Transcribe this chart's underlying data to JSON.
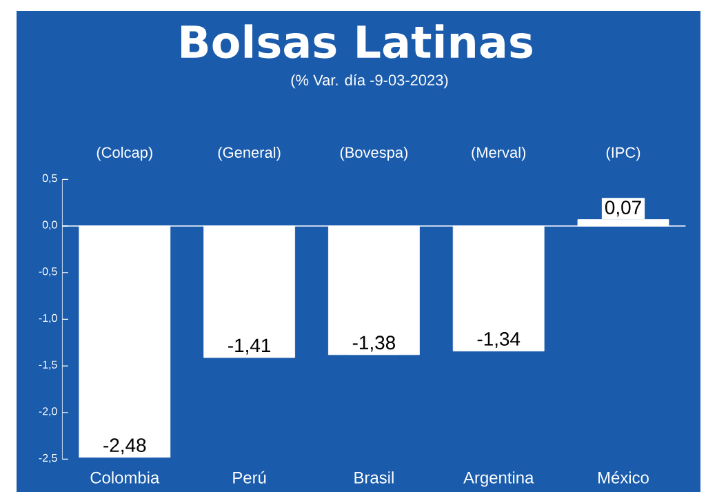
{
  "chart_data": {
    "type": "bar",
    "title": "Bolsas Latinas",
    "subtitle": "(% Var. día -9-03-2023)",
    "categories": [
      "Colombia",
      "Perú",
      "Brasil",
      "Argentina",
      "México"
    ],
    "values": [
      -2.48,
      -1.41,
      -1.38,
      -1.34,
      0.07
    ],
    "value_labels": [
      "-2,48",
      "-1,41",
      "-1,38",
      "-1,34",
      "0,07"
    ],
    "color": "#ffffff",
    "annotations": [
      "(Colcap)",
      "(General)",
      "(Bovespa)",
      "(Merval)",
      "(IPC)"
    ],
    "ylim": [
      -2.5,
      0.5
    ],
    "yticks": [
      {
        "value": -2.5,
        "label": "-2,5"
      },
      {
        "value": -2.0,
        "label": "-2,0"
      },
      {
        "value": -1.5,
        "label": "-1,5"
      },
      {
        "value": -1.0,
        "label": "-1,0"
      },
      {
        "value": -0.5,
        "label": "-0,5"
      },
      {
        "value": 0.0,
        "label": "0,0"
      },
      {
        "value": 0.5,
        "label": "0,5"
      }
    ],
    "ref_lines": [
      {
        "axis": "y",
        "value": 0
      }
    ]
  }
}
